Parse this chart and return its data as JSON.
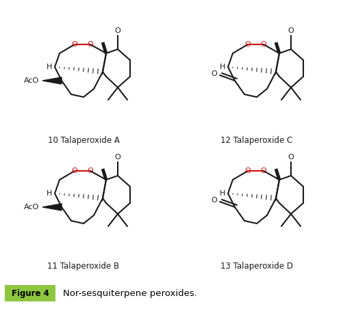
{
  "title": "Nor-sesquiterpene peroxides.",
  "figure_label": "Figure 4",
  "figure_label_bg": "#8dc63f",
  "compounds": [
    {
      "number": "10",
      "name": "Talaperoxide A",
      "col": 0,
      "row": 0,
      "has_aco": true
    },
    {
      "number": "11",
      "name": "Talaperoxide B",
      "col": 0,
      "row": 1,
      "has_aco": true
    },
    {
      "number": "12",
      "name": "Talaperoxide C",
      "col": 1,
      "row": 0,
      "has_aco": false
    },
    {
      "number": "13",
      "name": "Talaperoxide D",
      "col": 1,
      "row": 1,
      "has_aco": false
    }
  ],
  "bg_color": "#ffffff",
  "black": "#1a1a1a",
  "red": "#cc1111",
  "lw": 1.5,
  "label_fontsize": 8.5,
  "caption_fontsize": 9.5
}
